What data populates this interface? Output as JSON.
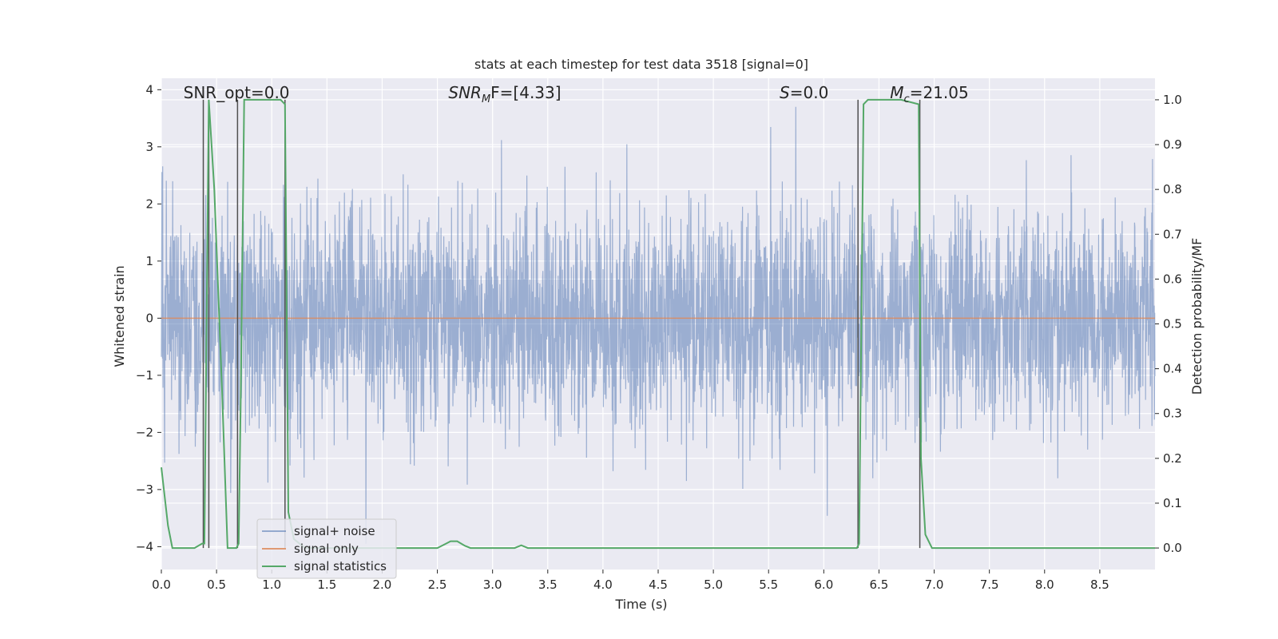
{
  "chart_data": {
    "type": "line",
    "title": "stats at each timestep for test data 3518 [signal=0]",
    "xlabel": "Time (s)",
    "ylabel": "Whitened strain",
    "y2label": "Detection probability/MF",
    "xlim": [
      0,
      9
    ],
    "ylim": [
      -4.4,
      4.2
    ],
    "y2lim": [
      -0.048,
      1.048
    ],
    "xticks": [
      "0.0",
      "0.5",
      "1.0",
      "1.5",
      "2.0",
      "2.5",
      "3.0",
      "3.5",
      "4.0",
      "4.5",
      "5.0",
      "5.5",
      "6.0",
      "6.5",
      "7.0",
      "7.5",
      "8.0",
      "8.5"
    ],
    "yticks": [
      "4",
      "3",
      "2",
      "1",
      "0",
      "−1",
      "−2",
      "−3",
      "−4"
    ],
    "y2ticks": [
      "1.0",
      "0.9",
      "0.8",
      "0.7",
      "0.6",
      "0.5",
      "0.4",
      "0.3",
      "0.2",
      "0.1",
      "0.0"
    ],
    "grid": true,
    "legend_placement": "lower-left",
    "annotations": [
      {
        "text": "SNR_opt=0.0",
        "x": 0.2
      },
      {
        "text_main": "SNR",
        "text_sub": "M",
        "text_rest": "F=[4.33]",
        "x": 2.6
      },
      {
        "text_main": "S",
        "text_rest": "=0.0",
        "x": 5.6
      },
      {
        "text_main": "M",
        "text_sub": "c",
        "text_rest": "=21.05",
        "x": 6.6
      }
    ],
    "vlines": [
      0.38,
      0.43,
      0.69,
      1.12,
      6.31,
      6.87
    ],
    "series": [
      {
        "name": "signal+ noise",
        "color": "#4c72b0",
        "kind": "noise",
        "typical_band": [
          -1.6,
          1.6
        ],
        "max_spike": 3.7,
        "min_spike": -4.0
      },
      {
        "name": "signal only",
        "color": "#dd8452",
        "x": [
          0,
          9
        ],
        "y": [
          0,
          0
        ]
      },
      {
        "name": "signal statistics",
        "color": "#55a868",
        "axis": "right",
        "x": [
          0.0,
          0.06,
          0.1,
          0.15,
          0.3,
          0.37,
          0.39,
          0.43,
          0.48,
          0.55,
          0.6,
          0.64,
          0.68,
          0.7,
          0.72,
          0.75,
          0.8,
          0.9,
          1.0,
          1.08,
          1.12,
          1.15,
          1.2,
          1.3,
          2.5,
          2.58,
          2.62,
          2.68,
          2.75,
          2.8,
          3.0,
          3.2,
          3.26,
          3.32,
          3.4,
          4.0,
          5.0,
          6.0,
          6.3,
          6.32,
          6.36,
          6.4,
          6.5,
          6.7,
          6.86,
          6.88,
          6.92,
          6.98,
          7.2,
          8.0,
          9.0
        ],
        "y": [
          0.18,
          0.05,
          0.0,
          0.0,
          0.0,
          0.01,
          0.01,
          1.0,
          0.8,
          0.35,
          0.0,
          0.0,
          0.0,
          0.01,
          0.35,
          1.0,
          1.0,
          1.0,
          1.0,
          1.0,
          0.99,
          0.08,
          0.02,
          0.0,
          0.0,
          0.01,
          0.015,
          0.015,
          0.005,
          0.0,
          0.0,
          0.0,
          0.006,
          0.0,
          0.0,
          0.0,
          0.0,
          0.0,
          0.0,
          0.01,
          0.99,
          1.0,
          1.0,
          1.0,
          0.99,
          0.2,
          0.03,
          0.0,
          0.0,
          0.0,
          0.0
        ]
      }
    ]
  }
}
